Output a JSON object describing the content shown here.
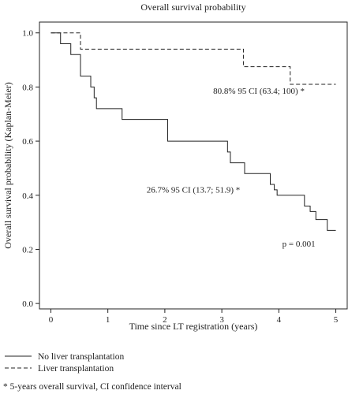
{
  "chart_data": {
    "type": "line",
    "title": "Overall survival probability",
    "xlabel": "Time since LT registration (years)",
    "ylabel": "Overall survival probability (Kaplan-Meier)",
    "xlim": [
      -0.2,
      5.2
    ],
    "ylim": [
      -0.02,
      1.04
    ],
    "xticks": [
      0,
      1,
      2,
      3,
      4,
      5
    ],
    "yticks": [
      0.0,
      0.2,
      0.4,
      0.6,
      0.8,
      1.0
    ],
    "xtick_labels": [
      "0",
      "1",
      "2",
      "3",
      "4",
      "5"
    ],
    "ytick_labels": [
      "0.0",
      "0.2",
      "0.4",
      "0.6",
      "0.8",
      "1.0"
    ],
    "grid": false,
    "legend_position": "below-left",
    "series": [
      {
        "name": "No liver transplantation",
        "line_style": "solid",
        "color": "#222222",
        "x": [
          0,
          0.17,
          0.35,
          0.52,
          0.7,
          0.76,
          0.8,
          1.25,
          2.05,
          3.1,
          3.15,
          3.22,
          3.4,
          3.85,
          3.92,
          3.97,
          4.45,
          4.55,
          4.65,
          4.85,
          5.0
        ],
        "y": [
          1.0,
          0.96,
          0.92,
          0.84,
          0.8,
          0.76,
          0.72,
          0.68,
          0.6,
          0.56,
          0.52,
          0.52,
          0.48,
          0.44,
          0.42,
          0.4,
          0.36,
          0.34,
          0.31,
          0.27,
          0.27
        ]
      },
      {
        "name": "Liver transplantation",
        "line_style": "dashed",
        "color": "#222222",
        "x": [
          0,
          0.52,
          3.38,
          4.2,
          5.0
        ],
        "y": [
          1.0,
          0.94,
          0.875,
          0.81,
          0.81
        ]
      }
    ],
    "annotations": [
      {
        "text": "80.8% 95 CI (63.4; 100) *",
        "x": 3.65,
        "y": 0.775
      },
      {
        "text": "26.7% 95 CI (13.7; 51.9) *",
        "x": 2.5,
        "y": 0.41
      },
      {
        "text": "p = 0.001",
        "x": 4.35,
        "y": 0.21
      }
    ],
    "footnote": "* 5-years overall survival, CI confidence interval"
  }
}
